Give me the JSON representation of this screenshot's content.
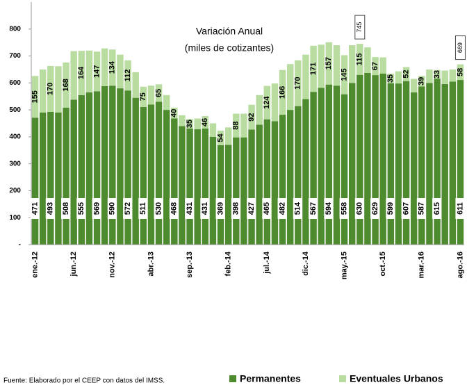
{
  "chart_data": {
    "type": "stacked-bar",
    "annotation_lines": [
      "Variación Anual",
      "(miles de cotizantes)"
    ],
    "source": "Fuente: Elaborado por el CEEP con datos del IMSS.",
    "categories": [
      "ene.-12",
      null,
      null,
      null,
      null,
      "jun.-12",
      null,
      null,
      null,
      null,
      "nov.-12",
      null,
      null,
      null,
      null,
      "abr.-13",
      null,
      null,
      null,
      null,
      "sep.-13",
      null,
      null,
      null,
      null,
      "feb.-14",
      null,
      null,
      null,
      null,
      "jul.-14",
      null,
      null,
      null,
      null,
      "dic.-14",
      null,
      null,
      null,
      null,
      "may.-15",
      null,
      null,
      null,
      null,
      "oct.-15",
      null,
      null,
      null,
      null,
      "mar.-16",
      null,
      null,
      null,
      null,
      "ago.-16"
    ],
    "series": [
      {
        "name": "Permanentes",
        "color": "#4e8a2e",
        "values": [
          471,
          490,
          493,
          490,
          508,
          538,
          555,
          565,
          569,
          588,
          590,
          580,
          572,
          545,
          511,
          520,
          530,
          500,
          468,
          440,
          431,
          428,
          431,
          400,
          369,
          370,
          398,
          398,
          427,
          445,
          465,
          458,
          482,
          500,
          514,
          540,
          567,
          582,
          594,
          590,
          558,
          600,
          630,
          637,
          629,
          635,
          599,
          598,
          607,
          565,
          587,
          600,
          615,
          596,
          605,
          611
        ],
        "value_labels": [
          "471",
          null,
          "493",
          null,
          "508",
          null,
          "555",
          null,
          "569",
          null,
          "590",
          null,
          "572",
          null,
          "511",
          null,
          "530",
          null,
          "468",
          null,
          "431",
          null,
          "431",
          null,
          "369",
          null,
          "398",
          null,
          "427",
          null,
          "465",
          null,
          "482",
          null,
          "514",
          null,
          "567",
          null,
          "594",
          null,
          "558",
          null,
          "630",
          null,
          "629",
          null,
          "599",
          null,
          "607",
          null,
          "587",
          null,
          "615",
          null,
          null,
          "611"
        ]
      },
      {
        "name": "Eventuales Urbanos",
        "color": "#b9dca0",
        "values": [
          155,
          160,
          170,
          172,
          168,
          180,
          164,
          155,
          147,
          140,
          134,
          125,
          112,
          95,
          75,
          70,
          65,
          55,
          40,
          40,
          35,
          40,
          46,
          50,
          54,
          65,
          88,
          88,
          92,
          110,
          124,
          140,
          166,
          170,
          170,
          165,
          171,
          160,
          157,
          150,
          145,
          140,
          115,
          95,
          67,
          60,
          35,
          45,
          52,
          50,
          39,
          50,
          33,
          50,
          45,
          58
        ],
        "value_labels": [
          "155",
          null,
          "170",
          null,
          "168",
          null,
          "164",
          null,
          "147",
          null,
          "134",
          null,
          "112",
          null,
          "75",
          null,
          "65",
          null,
          "40",
          null,
          "35",
          null,
          "46",
          null,
          "54",
          null,
          "88",
          null,
          "92",
          null,
          "124",
          null,
          "166",
          null,
          "170",
          null,
          "171",
          null,
          "157",
          null,
          "145",
          null,
          "115",
          null,
          "67",
          null,
          "35",
          null,
          "52",
          null,
          "39",
          null,
          "33",
          null,
          null,
          "58"
        ]
      }
    ],
    "totals": [
      null,
      null,
      null,
      null,
      null,
      null,
      null,
      null,
      null,
      null,
      null,
      null,
      null,
      null,
      null,
      null,
      null,
      null,
      null,
      null,
      null,
      null,
      null,
      null,
      null,
      null,
      null,
      null,
      null,
      null,
      null,
      null,
      null,
      null,
      null,
      null,
      null,
      null,
      null,
      null,
      null,
      null,
      745,
      null,
      null,
      null,
      null,
      null,
      null,
      null,
      null,
      null,
      null,
      null,
      null,
      669
    ],
    "ylim": [
      0,
      900
    ],
    "yticks": [
      {
        "value": 0,
        "label": "-"
      },
      100,
      200,
      300,
      400,
      500,
      600,
      700,
      800
    ]
  }
}
